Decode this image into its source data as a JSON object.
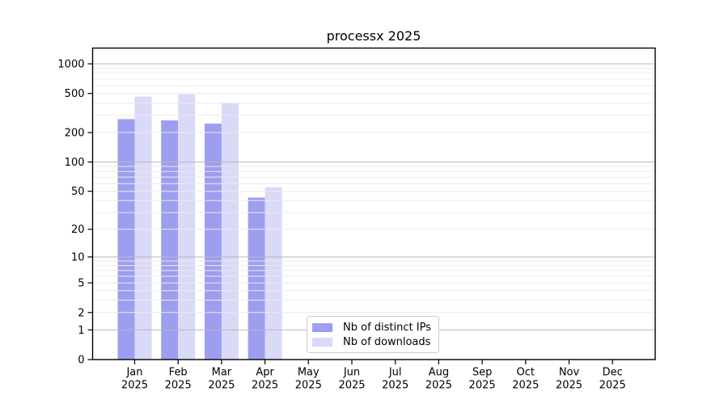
{
  "chart_data": {
    "type": "bar",
    "title": "processx 2025",
    "xlabel": "",
    "ylabel": "",
    "yscale": "log1p",
    "ylim": [
      0,
      1000
    ],
    "yticks": [
      0,
      1,
      2,
      5,
      10,
      20,
      50,
      100,
      200,
      500,
      1000
    ],
    "grid": {
      "major_ticks": [
        1,
        10,
        100,
        1000
      ],
      "minor_ticks": "2-9 of each decade",
      "grid_on": true,
      "grid_above_bars": true
    },
    "months": [
      "Jan",
      "Feb",
      "Mar",
      "Apr",
      "May",
      "Jun",
      "Jul",
      "Aug",
      "Sep",
      "Oct",
      "Nov",
      "Dec"
    ],
    "year": "2025",
    "categories": [
      "Jan 2025",
      "Feb 2025",
      "Mar 2025",
      "Apr 2025",
      "May 2025",
      "Jun 2025",
      "Jul 2025",
      "Aug 2025",
      "Sep 2025",
      "Oct 2025",
      "Nov 2025",
      "Dec 2025"
    ],
    "series": [
      {
        "name": "Nb of distinct IPs",
        "color": "#9e9ef0",
        "values": [
          274,
          266,
          247,
          43,
          null,
          null,
          null,
          null,
          null,
          null,
          null,
          null
        ]
      },
      {
        "name": "Nb of downloads",
        "color": "#d9d9f8",
        "values": [
          465,
          490,
          397,
          55,
          null,
          null,
          null,
          null,
          null,
          null,
          null,
          null
        ]
      }
    ],
    "legend_position": "lower center-left inside plot"
  },
  "colors": {
    "major_grid": "#b9b9b9",
    "minor_grid": "#ebebeb",
    "axis": "#000000",
    "background": "#ffffff"
  }
}
